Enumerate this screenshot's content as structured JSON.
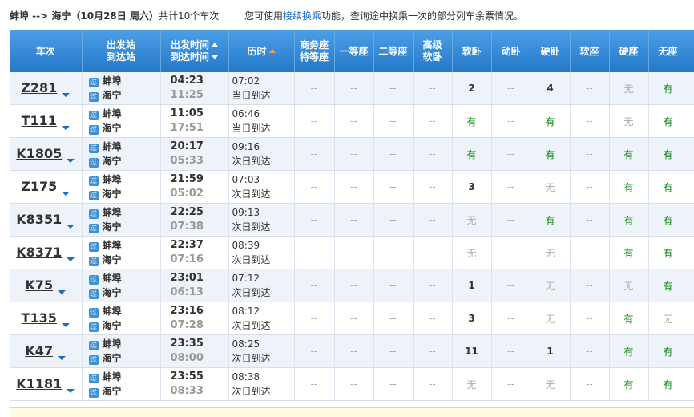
{
  "summary": {
    "route": "蚌埠 --> 海宁（10月28日 周六）",
    "count": "共计10个车次",
    "tip_before": "您可使用",
    "tip_link": "接续换乘",
    "tip_after": "功能，查询途中换乘一次的部分列车余票情况。"
  },
  "table": {
    "header": [
      [
        "车次"
      ],
      [
        "出发站",
        "到达站"
      ],
      [
        "出发时间",
        "到达时间"
      ],
      [
        "历时"
      ],
      [
        "商务座",
        "特等座"
      ],
      [
        "一等座"
      ],
      [
        "二等座"
      ],
      [
        "高级",
        "软卧"
      ],
      [
        "软卧"
      ],
      [
        "动卧"
      ],
      [
        "硬卧"
      ],
      [
        "软座"
      ],
      [
        "硬座"
      ],
      [
        "无座"
      ]
    ],
    "rows": [
      {
        "train": "Z281",
        "from_tag": "过",
        "from": "蚌埠",
        "to_tag": "过",
        "to": "海宁",
        "depart": "04:23",
        "arrive": "11:25",
        "duration": "07:02",
        "arrival_day": "当日到达",
        "seats": [
          "--",
          "--",
          "--",
          "--",
          "2",
          "--",
          "4",
          "--",
          "无",
          "有"
        ]
      },
      {
        "train": "T111",
        "from_tag": "过",
        "from": "蚌埠",
        "to_tag": "过",
        "to": "海宁",
        "depart": "11:05",
        "arrive": "17:51",
        "duration": "06:46",
        "arrival_day": "当日到达",
        "seats": [
          "--",
          "--",
          "--",
          "--",
          "有",
          "--",
          "有",
          "--",
          "无",
          "有"
        ]
      },
      {
        "train": "K1805",
        "from_tag": "过",
        "from": "蚌埠",
        "to_tag": "过",
        "to": "海宁",
        "depart": "20:17",
        "arrive": "05:33",
        "duration": "09:16",
        "arrival_day": "次日到达",
        "seats": [
          "--",
          "--",
          "--",
          "--",
          "有",
          "--",
          "有",
          "--",
          "有",
          "有"
        ]
      },
      {
        "train": "Z175",
        "from_tag": "过",
        "from": "蚌埠",
        "to_tag": "过",
        "to": "海宁",
        "depart": "21:59",
        "arrive": "05:02",
        "duration": "07:03",
        "arrival_day": "次日到达",
        "seats": [
          "--",
          "--",
          "--",
          "--",
          "3",
          "--",
          "无",
          "--",
          "有",
          "有"
        ]
      },
      {
        "train": "K8351",
        "from_tag": "过",
        "from": "蚌埠",
        "to_tag": "过",
        "to": "海宁",
        "depart": "22:25",
        "arrive": "07:38",
        "duration": "09:13",
        "arrival_day": "次日到达",
        "seats": [
          "--",
          "--",
          "--",
          "--",
          "无",
          "--",
          "有",
          "--",
          "有",
          "有"
        ]
      },
      {
        "train": "K8371",
        "from_tag": "过",
        "from": "蚌埠",
        "to_tag": "过",
        "to": "海宁",
        "depart": "22:37",
        "arrive": "07:16",
        "duration": "08:39",
        "arrival_day": "次日到达",
        "seats": [
          "--",
          "--",
          "--",
          "--",
          "无",
          "--",
          "无",
          "--",
          "有",
          "有"
        ]
      },
      {
        "train": "K75",
        "from_tag": "过",
        "from": "蚌埠",
        "to_tag": "过",
        "to": "海宁",
        "depart": "23:01",
        "arrive": "06:13",
        "duration": "07:12",
        "arrival_day": "次日到达",
        "seats": [
          "--",
          "--",
          "--",
          "--",
          "1",
          "--",
          "无",
          "--",
          "无",
          "有"
        ]
      },
      {
        "train": "T135",
        "from_tag": "过",
        "from": "蚌埠",
        "to_tag": "过",
        "to": "海宁",
        "depart": "23:16",
        "arrive": "07:28",
        "duration": "08:12",
        "arrival_day": "次日到达",
        "seats": [
          "--",
          "--",
          "--",
          "--",
          "3",
          "--",
          "无",
          "--",
          "有",
          "无"
        ]
      },
      {
        "train": "K47",
        "from_tag": "过",
        "from": "蚌埠",
        "to_tag": "过",
        "to": "海宁",
        "depart": "23:35",
        "arrive": "08:00",
        "duration": "08:25",
        "arrival_day": "次日到达",
        "seats": [
          "--",
          "--",
          "--",
          "--",
          "11",
          "--",
          "1",
          "--",
          "有",
          "有"
        ]
      },
      {
        "train": "K1181",
        "from_tag": "过",
        "from": "蚌埠",
        "to_tag": "过",
        "to": "海宁",
        "depart": "23:55",
        "arrive": "08:33",
        "duration": "08:38",
        "arrival_day": "次日到达",
        "seats": [
          "--",
          "--",
          "--",
          "--",
          "无",
          "--",
          "无",
          "--",
          "有",
          "有"
        ]
      }
    ]
  }
}
